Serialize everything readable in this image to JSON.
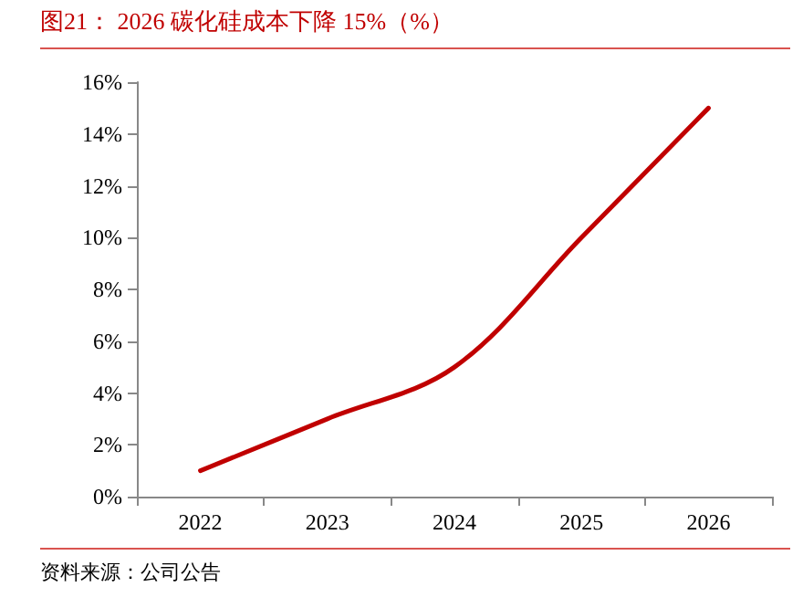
{
  "chart_data": {
    "type": "line",
    "title": "图21：  2026 碳化硅成本下降 15%（%）",
    "annotations": [
      "资料来源：公司公告"
    ],
    "categories": [
      "2022",
      "2023",
      "2024",
      "2025",
      "2026"
    ],
    "series": [
      {
        "color": "#c00000",
        "values": [
          1,
          3,
          5,
          10,
          15
        ]
      }
    ],
    "ylim": [
      0,
      16
    ],
    "yticks": [
      {
        "value": 0,
        "label": "0%"
      },
      {
        "value": 2,
        "label": "2%"
      },
      {
        "value": 4,
        "label": "4%"
      },
      {
        "value": 6,
        "label": "6%"
      },
      {
        "value": 8,
        "label": "8%"
      },
      {
        "value": 10,
        "label": "10%"
      },
      {
        "value": 12,
        "label": "12%"
      },
      {
        "value": 14,
        "label": "14%"
      },
      {
        "value": 16,
        "label": "16%"
      }
    ],
    "grid": false,
    "marker": "none",
    "line_style": "solid"
  }
}
